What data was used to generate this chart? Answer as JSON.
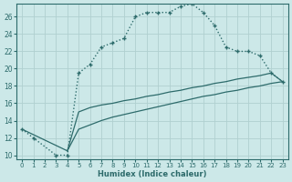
{
  "xlabel": "Humidex (Indice chaleur)",
  "ylabel": "",
  "background_color": "#cce8e8",
  "grid_color": "#b0d0d0",
  "line_color": "#2d6b6b",
  "xlim": [
    -0.5,
    23.5
  ],
  "ylim": [
    9.5,
    27.5
  ],
  "xticks": [
    0,
    1,
    2,
    3,
    4,
    5,
    6,
    7,
    8,
    9,
    10,
    11,
    12,
    13,
    14,
    15,
    16,
    17,
    18,
    19,
    20,
    21,
    22,
    23
  ],
  "yticks": [
    10,
    12,
    14,
    16,
    18,
    20,
    22,
    24,
    26
  ],
  "curve1_x": [
    0,
    1,
    3,
    4,
    5,
    6,
    7,
    8,
    9,
    10,
    11,
    12,
    13,
    14,
    15,
    16,
    17,
    18,
    19,
    20,
    21,
    22,
    23
  ],
  "curve1_y": [
    13,
    12,
    10,
    10,
    19.5,
    20.5,
    22.5,
    23,
    23.5,
    26,
    26.5,
    26.5,
    26.5,
    27.2,
    27.5,
    26.5,
    25,
    22.5,
    22,
    22,
    21.5,
    19.5,
    18.5
  ],
  "curve2_x": [
    0,
    4,
    5,
    6,
    7,
    8,
    9,
    10,
    11,
    12,
    13,
    14,
    15,
    16,
    17,
    18,
    19,
    20,
    21,
    22,
    23
  ],
  "curve2_y": [
    13,
    10.5,
    15,
    15.5,
    15.8,
    16,
    16.3,
    16.5,
    16.8,
    17,
    17.3,
    17.5,
    17.8,
    18,
    18.3,
    18.5,
    18.8,
    19,
    19.2,
    19.5,
    18.5
  ],
  "curve3_x": [
    4,
    5,
    6,
    7,
    8,
    9,
    10,
    11,
    12,
    13,
    14,
    15,
    16,
    17,
    18,
    19,
    20,
    21,
    22,
    23
  ],
  "curve3_y": [
    10.5,
    13,
    13.5,
    14,
    14.4,
    14.7,
    15,
    15.3,
    15.6,
    15.9,
    16.2,
    16.5,
    16.8,
    17.0,
    17.3,
    17.5,
    17.8,
    18,
    18.3,
    18.5
  ]
}
